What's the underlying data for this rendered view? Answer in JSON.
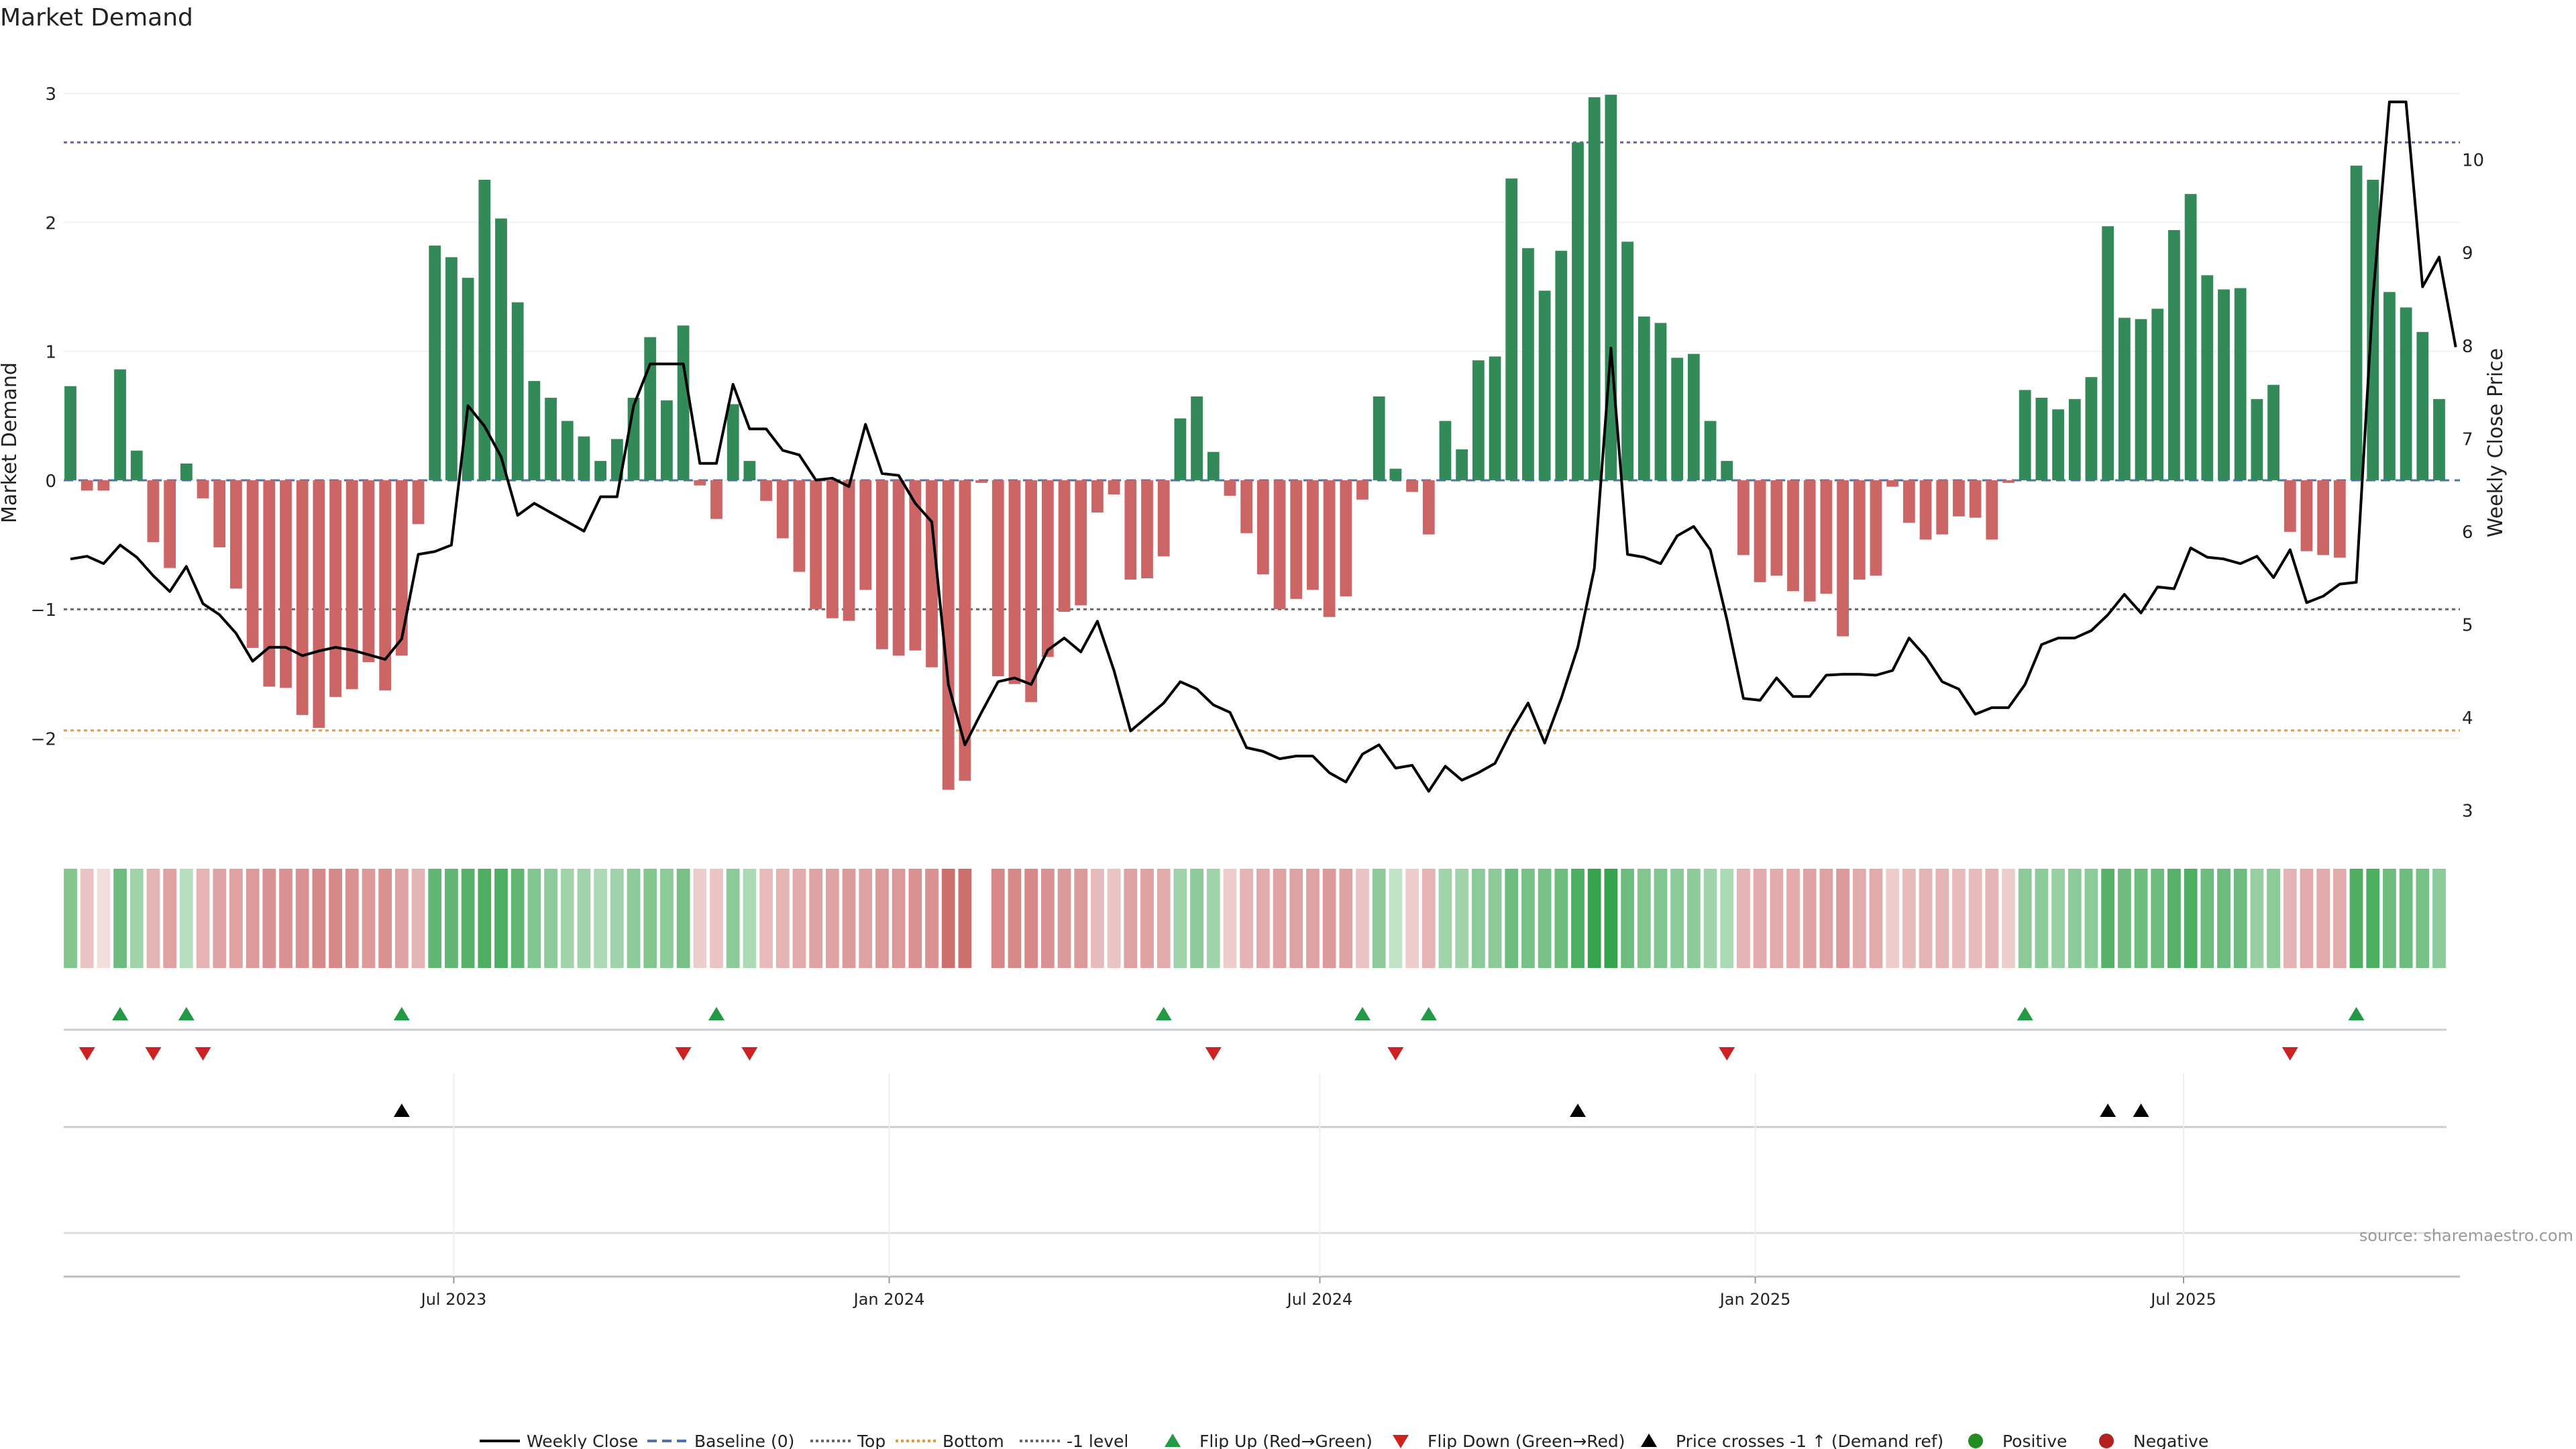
{
  "title": "Market Demand",
  "source": "source: sharemaestro.com",
  "chart_data": {
    "type": "bar",
    "x_start_date": "2023-01-20",
    "x_interval_days": 7,
    "x_ticks": [
      "Jul 2023",
      "Jan 2024",
      "Jul 2024",
      "Jan 2025",
      "Jul 2025"
    ],
    "ylabel_left": "Market Demand",
    "ylabel_right": "Weekly Close Price",
    "ylim_left": [
      -2.7,
      3.1
    ],
    "ylim_right": [
      2.8,
      10.85
    ],
    "yticks_left": [
      3,
      2,
      1,
      0,
      -1,
      -2
    ],
    "ytick_labels_left": [
      "3",
      "2",
      "1",
      "0",
      "−1",
      "−2"
    ],
    "yticks_right": [
      10,
      9,
      8,
      7,
      6,
      5,
      4,
      3
    ],
    "ytick_labels_right": [
      "10",
      "9",
      "8",
      "7",
      "6",
      "5",
      "4",
      "3"
    ],
    "levels": {
      "top": 2.62,
      "bottom": -1.94,
      "minus_one": -1
    },
    "demand": [
      0.73,
      -0.08,
      -0.08,
      0.86,
      0.23,
      -0.48,
      -0.68,
      0.13,
      -0.14,
      -0.52,
      -0.84,
      -1.3,
      -1.6,
      -1.61,
      -1.82,
      -1.92,
      -1.68,
      -1.62,
      -1.41,
      -1.63,
      -1.36,
      -0.34,
      1.82,
      1.73,
      1.57,
      2.33,
      2.03,
      1.38,
      0.77,
      0.64,
      0.46,
      0.34,
      0.15,
      0.32,
      0.64,
      1.11,
      0.62,
      1.2,
      -0.04,
      -0.3,
      0.59,
      0.15,
      -0.16,
      -0.45,
      -0.71,
      -1.0,
      -1.07,
      -1.09,
      -0.85,
      -1.31,
      -1.36,
      -1.32,
      -1.45,
      -2.4,
      -2.33,
      -0.02,
      -1.52,
      -1.58,
      -1.72,
      -1.37,
      -1.02,
      -0.97,
      -0.25,
      -0.11,
      -0.77,
      -0.76,
      -0.59,
      0.48,
      0.65,
      0.22,
      -0.12,
      -0.41,
      -0.73,
      -1.0,
      -0.92,
      -0.85,
      -1.06,
      -0.9,
      -0.15,
      0.65,
      0.09,
      -0.09,
      -0.42,
      0.46,
      0.24,
      0.93,
      0.96,
      2.34,
      1.8,
      1.47,
      1.78,
      2.62,
      2.97,
      2.99,
      1.85,
      1.27,
      1.22,
      0.95,
      0.98,
      0.46,
      0.15,
      -0.58,
      -0.79,
      -0.74,
      -0.86,
      -0.94,
      -0.88,
      -1.21,
      -0.77,
      -0.74,
      -0.05,
      -0.33,
      -0.46,
      -0.42,
      -0.28,
      -0.29,
      -0.46,
      -0.02,
      0.7,
      0.64,
      0.55,
      0.63,
      0.8,
      1.97,
      1.26,
      1.25,
      1.33,
      1.94,
      2.22,
      1.59,
      1.48,
      1.49,
      0.63,
      0.74,
      -0.4,
      -0.55,
      -0.58,
      -0.6,
      2.44,
      2.33,
      1.46,
      1.34,
      1.15,
      0.63
    ],
    "close": [
      5.7,
      5.73,
      5.65,
      5.85,
      5.72,
      5.52,
      5.35,
      5.62,
      5.22,
      5.1,
      4.9,
      4.6,
      4.75,
      4.75,
      4.66,
      4.71,
      4.75,
      4.72,
      4.67,
      4.62,
      4.84,
      5.75,
      5.78,
      5.85,
      7.35,
      7.13,
      6.8,
      6.17,
      6.3,
      6.2,
      6.1,
      6.0,
      6.37,
      6.37,
      7.35,
      7.8,
      7.8,
      7.8,
      6.73,
      6.73,
      7.58,
      7.1,
      7.1,
      6.87,
      6.82,
      6.55,
      6.57,
      6.48,
      7.15,
      6.62,
      6.6,
      6.3,
      6.1,
      4.35,
      3.7,
      4.05,
      4.38,
      4.42,
      4.35,
      4.72,
      4.85,
      4.7,
      5.03,
      4.5,
      3.85,
      4.0,
      4.15,
      4.38,
      4.3,
      4.13,
      4.05,
      3.67,
      3.63,
      3.55,
      3.58,
      3.58,
      3.4,
      3.3,
      3.6,
      3.7,
      3.45,
      3.48,
      3.2,
      3.47,
      3.32,
      3.4,
      3.5,
      3.85,
      4.15,
      3.72,
      4.2,
      4.75,
      5.6,
      7.97,
      5.75,
      5.72,
      5.65,
      5.95,
      6.05,
      5.8,
      5.05,
      4.2,
      4.18,
      4.42,
      4.22,
      4.22,
      4.45,
      4.46,
      4.46,
      4.45,
      4.5,
      4.85,
      4.65,
      4.38,
      4.3,
      4.03,
      4.1,
      4.1,
      4.35,
      4.78,
      4.85,
      4.85,
      4.93,
      5.1,
      5.32,
      5.12,
      5.4,
      5.38,
      5.82,
      5.72,
      5.7,
      5.65,
      5.73,
      5.5,
      5.8,
      5.23,
      5.3,
      5.43,
      5.45,
      8.5,
      10.62,
      10.62,
      8.63,
      8.95,
      7.98
    ],
    "heat_alpha": [
      0.6,
      0.35,
      0.2,
      0.7,
      0.45,
      0.45,
      0.55,
      0.35,
      0.45,
      0.55,
      0.55,
      0.6,
      0.65,
      0.65,
      0.65,
      0.7,
      0.7,
      0.65,
      0.6,
      0.65,
      0.55,
      0.45,
      0.75,
      0.75,
      0.8,
      0.85,
      0.85,
      0.75,
      0.6,
      0.55,
      0.45,
      0.45,
      0.4,
      0.45,
      0.55,
      0.6,
      0.55,
      0.65,
      0.3,
      0.35,
      0.55,
      0.4,
      0.4,
      0.45,
      0.5,
      0.55,
      0.55,
      0.6,
      0.55,
      0.6,
      0.6,
      0.65,
      0.65,
      0.85,
      0.85,
      0.0,
      0.7,
      0.7,
      0.7,
      0.65,
      0.6,
      0.6,
      0.4,
      0.35,
      0.55,
      0.55,
      0.5,
      0.45,
      0.55,
      0.45,
      0.3,
      0.45,
      0.5,
      0.55,
      0.55,
      0.55,
      0.6,
      0.55,
      0.35,
      0.55,
      0.3,
      0.3,
      0.45,
      0.45,
      0.45,
      0.55,
      0.55,
      0.7,
      0.65,
      0.65,
      0.7,
      0.85,
      0.95,
      0.95,
      0.7,
      0.6,
      0.6,
      0.55,
      0.55,
      0.45,
      0.4,
      0.45,
      0.5,
      0.5,
      0.5,
      0.55,
      0.55,
      0.6,
      0.5,
      0.5,
      0.3,
      0.4,
      0.45,
      0.45,
      0.4,
      0.4,
      0.45,
      0.3,
      0.55,
      0.55,
      0.5,
      0.55,
      0.55,
      0.8,
      0.7,
      0.7,
      0.7,
      0.8,
      0.85,
      0.7,
      0.7,
      0.7,
      0.5,
      0.55,
      0.45,
      0.5,
      0.5,
      0.5,
      0.85,
      0.85,
      0.7,
      0.7,
      0.65,
      0.55
    ],
    "flip_up_weeks": [
      3,
      7,
      20,
      39,
      66,
      78,
      82,
      118,
      138
    ],
    "flip_down_weeks": [
      1,
      5,
      8,
      37,
      41,
      69,
      80,
      100,
      134
    ],
    "cross_up_weeks": [
      20,
      91,
      123,
      125
    ],
    "legend": [
      "Weekly Close",
      "Baseline (0)",
      "Top",
      "Bottom",
      "-1 level",
      "Flip Up (Red→Green)",
      "Flip Down (Green→Red)",
      "Price crosses -1 ↑ (Demand ref)",
      "Positive",
      "Negative"
    ],
    "colors": {
      "positive": "#338a59",
      "negative": "#cc6666",
      "heat_positive": "#2e9e45",
      "heat_negative": "#c45555",
      "flip_up": "#229944",
      "flip_down": "#cc2222",
      "cross": "#000000",
      "top_line": "#5b5fc7",
      "bottom_line": "#e59a3a",
      "minus_one_line": "#666666",
      "baseline": "#4c72b0",
      "close_line": "#000000",
      "legend_positive": "#228b22",
      "legend_negative": "#b22222"
    }
  }
}
